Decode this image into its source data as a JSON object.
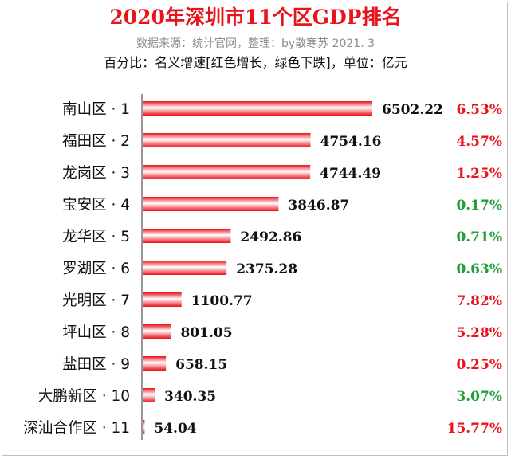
{
  "header": {
    "title": "2020年深圳市11个区GDP排名",
    "source": "数据来源：统计官网，整理：by散寒苏  2021. 3",
    "note": "百分比：名义增速[红色增长，绿色下跌]，单位：亿元"
  },
  "colors": {
    "title": "#e8141b",
    "bar": "#e8101a",
    "growth_red": "#e8141b",
    "growth_green": "#1e9e37",
    "axis": "#333333"
  },
  "chart_data": {
    "type": "bar",
    "orientation": "horizontal",
    "title": "2020年深圳市11个区GDP排名",
    "xlabel": "",
    "ylabel": "",
    "unit": "亿元",
    "categories": [
      "南山区 · 1",
      "福田区 · 2",
      "龙岗区 · 3",
      "宝安区 · 4",
      "龙华区 · 5",
      "罗湖区 · 6",
      "光明区 · 7",
      "坪山区 · 8",
      "盐田区 · 9",
      "大鹏新区 · 10",
      "深汕合作区 · 11"
    ],
    "values": [
      6502.22,
      4754.16,
      4744.49,
      3846.87,
      2492.86,
      2375.28,
      1100.77,
      801.05,
      658.15,
      340.35,
      54.04
    ],
    "value_labels": [
      "6502.22",
      "4754.16",
      "4744.49",
      "3846.87",
      "2492.86",
      "2375.28",
      "1100.77",
      "801.05",
      "658.15",
      "340.35",
      "54.04"
    ],
    "growth_labels": [
      "6.53%",
      "4.57%",
      "1.25%",
      "0.17%",
      "0.71%",
      "0.63%",
      "7.82%",
      "5.28%",
      "0.25%",
      "3.07%",
      "15.77%"
    ],
    "growth_colors": [
      "red",
      "red",
      "red",
      "green",
      "green",
      "green",
      "red",
      "red",
      "red",
      "green",
      "red"
    ],
    "xlim": [
      0,
      6502.22
    ],
    "grid": false,
    "legend": "none"
  }
}
